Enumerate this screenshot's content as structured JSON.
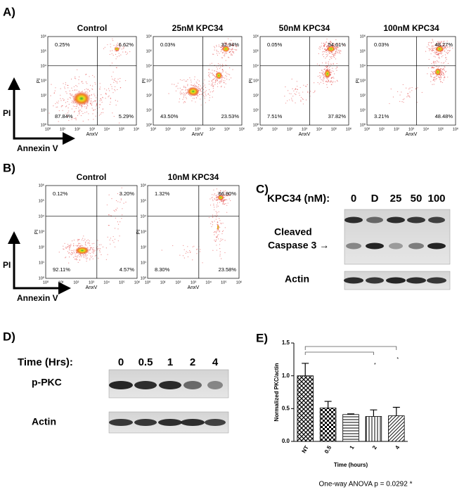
{
  "panels": {
    "log_ticks": [
      "10⁰",
      "10¹",
      "10²",
      "10³",
      "10⁴",
      "10⁵",
      "10⁶"
    ],
    "A": {
      "label": "A)",
      "x_axis": "AnxV",
      "y_axis": "PI",
      "legend_y": "PI",
      "legend_x": "Annexin V",
      "plots": [
        {
          "title": "Control",
          "quadrants": [
            "0.25%",
            "6.62%",
            "87.84%",
            "5.29%"
          ]
        },
        {
          "title": "25nM KPC34",
          "quadrants": [
            "0.03%",
            "32.94%",
            "43.50%",
            "23.53%"
          ]
        },
        {
          "title": "50nM KPC34",
          "quadrants": [
            "0.05%",
            "54.61%",
            "7.51%",
            "37.82%"
          ]
        },
        {
          "title": "100nM KPC34",
          "quadrants": [
            "0.03%",
            "48.27%",
            "3.21%",
            "48.48%"
          ]
        }
      ]
    },
    "B": {
      "label": "B)",
      "x_axis": "AnxV",
      "y_axis": "PI",
      "legend_y": "PI",
      "legend_x": "Annexin V",
      "plots": [
        {
          "title": "Control",
          "quadrants": [
            "0.12%",
            "3.20%",
            "92.11%",
            "4.57%"
          ]
        },
        {
          "title": "10nM KPC34",
          "quadrants": [
            "1.32%",
            "66.80%",
            "8.30%",
            "23.58%"
          ]
        }
      ]
    },
    "C": {
      "label": "C)",
      "treatment": "KPC34 (nM):",
      "lanes": [
        "0",
        "D",
        "25",
        "50",
        "100"
      ],
      "band_label_1": "Cleaved",
      "band_label_2": "Caspase 3 →",
      "loading": "Actin"
    },
    "D": {
      "label": "D)",
      "treatment": "Time (Hrs):",
      "lanes": [
        "0",
        "0.5",
        "1",
        "2",
        "4"
      ],
      "band_label": "p-PKC",
      "loading": "Actin"
    }
  },
  "chart_data": {
    "type": "bar",
    "label": "E)",
    "categories": [
      "NT",
      "0.5",
      "1",
      "2",
      "4"
    ],
    "values": [
      1.0,
      0.51,
      0.41,
      0.38,
      0.39
    ],
    "errors": [
      0.19,
      0.1,
      0.01,
      0.1,
      0.13
    ],
    "ylim": [
      0,
      1.5
    ],
    "yticks": [
      {
        "value": 0,
        "label": "0.0"
      },
      0.5,
      {
        "value": 1,
        "label": "1.0"
      },
      1.5
    ],
    "ylabel": "Normalized PKC/actin",
    "xlabel": "Time (hours)",
    "annotations": [
      "*",
      "*"
    ],
    "note": "One-way ANOVA p = 0.0292 *"
  }
}
